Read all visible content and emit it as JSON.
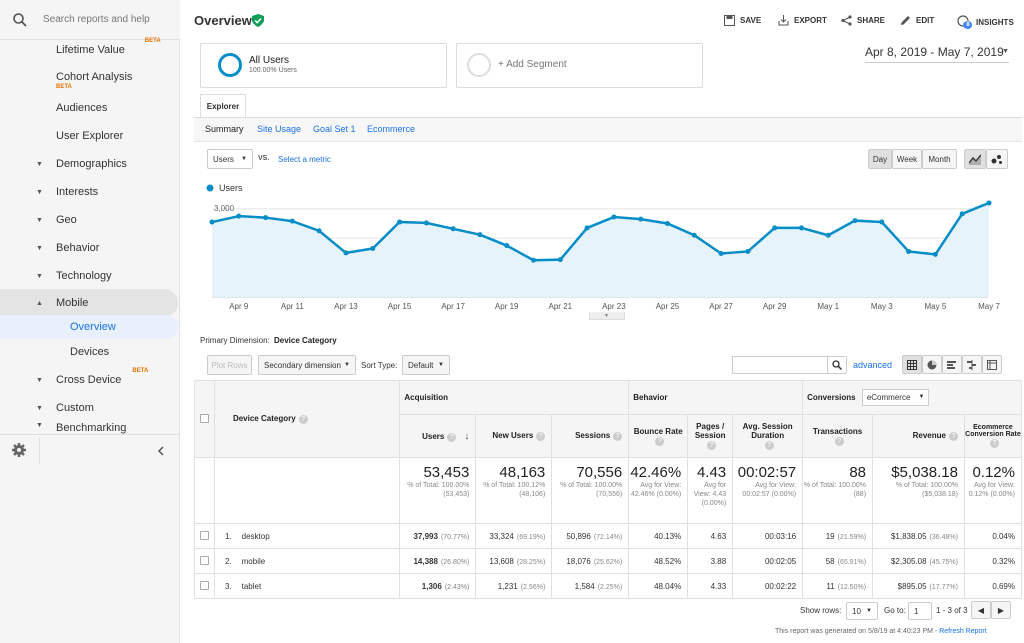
{
  "search": {
    "placeholder": "Search reports and help"
  },
  "sidebar": {
    "items": [
      {
        "label": "Lifetime Value",
        "beta": "BETA"
      },
      {
        "label": "Cohort Analysis",
        "beta": "BETA"
      },
      {
        "label": "Audiences"
      },
      {
        "label": "User Explorer"
      },
      {
        "label": "Demographics"
      },
      {
        "label": "Interests"
      },
      {
        "label": "Geo"
      },
      {
        "label": "Behavior"
      },
      {
        "label": "Technology"
      },
      {
        "label": "Mobile"
      },
      {
        "label": "Overview"
      },
      {
        "label": "Devices"
      },
      {
        "label": "Cross Device",
        "beta": "BETA"
      },
      {
        "label": "Custom"
      },
      {
        "label": "Benchmarking"
      }
    ]
  },
  "header": {
    "title": "Overview",
    "save": "SAVE",
    "export": "EXPORT",
    "share": "SHARE",
    "edit": "EDIT",
    "insights": "INSIGHTS",
    "insights_badge": "8"
  },
  "segments": {
    "all_users": "All Users",
    "all_users_pct": "100.00% Users",
    "add_segment": "+ Add Segment"
  },
  "date_range": "Apr 8, 2019 - May 7, 2019",
  "explorer_tab": "Explorer",
  "subtabs": [
    "Summary",
    "Site Usage",
    "Goal Set 1",
    "Ecommerce"
  ],
  "metric": {
    "selected": "Users",
    "vs": "VS.",
    "select_metric": "Select a metric"
  },
  "granularity": [
    "Day",
    "Week",
    "Month"
  ],
  "chart_data": {
    "type": "area",
    "series": [
      {
        "name": "Users",
        "values": [
          2550,
          2750,
          2700,
          2580,
          2250,
          1500,
          1650,
          2550,
          2520,
          2320,
          2120,
          1750,
          1250,
          1270,
          2350,
          2720,
          2650,
          2500,
          2100,
          1480,
          1550,
          2350,
          2350,
          2100,
          2600,
          2550,
          1550,
          1450,
          2830,
          3200
        ]
      }
    ],
    "x": [
      "Apr 8",
      "Apr 9",
      "Apr 10",
      "Apr 11",
      "Apr 12",
      "Apr 13",
      "Apr 14",
      "Apr 15",
      "Apr 16",
      "Apr 17",
      "Apr 18",
      "Apr 19",
      "Apr 20",
      "Apr 21",
      "Apr 22",
      "Apr 23",
      "Apr 24",
      "Apr 25",
      "Apr 26",
      "Apr 27",
      "Apr 28",
      "Apr 29",
      "Apr 30",
      "May 1",
      "May 2",
      "May 3",
      "May 4",
      "May 5",
      "May 6",
      "May 7"
    ],
    "xticks": [
      "Apr 9",
      "Apr 11",
      "Apr 13",
      "Apr 15",
      "Apr 17",
      "Apr 19",
      "Apr 21",
      "Apr 23",
      "Apr 25",
      "Apr 27",
      "Apr 29",
      "May 1",
      "May 3",
      "May 5",
      "May 7"
    ],
    "yticks": [
      "3,000",
      "2,000",
      "1,000"
    ],
    "ylim": [
      0,
      3300
    ],
    "legend_placement": "top-left",
    "color": "#058dc7"
  },
  "primary_dimension": {
    "label": "Primary Dimension:",
    "value": "Device Category"
  },
  "controls": {
    "plot_rows": "Plot Rows",
    "secondary_dimension": "Secondary dimension",
    "sort_type_label": "Sort Type:",
    "sort_type": "Default",
    "advanced": "advanced"
  },
  "table": {
    "device_category": "Device Category",
    "groups": {
      "acquisition": "Acquisition",
      "behavior": "Behavior",
      "conversions": "Conversions",
      "conversions_select": "eCommerce"
    },
    "columns": [
      "Users",
      "New Users",
      "Sessions",
      "Bounce Rate",
      "Pages / Session",
      "Avg. Session Duration",
      "Transactions",
      "Revenue",
      "Ecommerce Conversion Rate"
    ],
    "totals": [
      {
        "value": "53,453",
        "sub": "% of Total: 100.00% (53,453)"
      },
      {
        "value": "48,163",
        "sub": "% of Total: 100.12% (48,106)"
      },
      {
        "value": "70,556",
        "sub": "% of Total: 100.00% (70,556)"
      },
      {
        "value": "42.46%",
        "sub": "Avg for View: 42.46% (0.00%)"
      },
      {
        "value": "4.43",
        "sub": "Avg for View: 4.43 (0.00%)"
      },
      {
        "value": "00:02:57",
        "sub": "Avg for View: 00:02:57 (0.00%)"
      },
      {
        "value": "88",
        "sub": "% of Total: 100.00% (88)"
      },
      {
        "value": "$5,038.18",
        "sub": "% of Total: 100.00% ($5,038.18)"
      },
      {
        "value": "0.12%",
        "sub": "Avg for View: 0.12% (0.00%)"
      }
    ],
    "rows": [
      {
        "num": "1.",
        "name": "desktop",
        "cells": [
          [
            "37,993",
            "(70.77%)"
          ],
          [
            "33,324",
            "(69.19%)"
          ],
          [
            "50,896",
            "(72.14%)"
          ],
          [
            "40.13%",
            ""
          ],
          [
            "4.63",
            ""
          ],
          [
            "00:03:16",
            ""
          ],
          [
            "19",
            "(21.59%)"
          ],
          [
            "$1,838.05",
            "(36.48%)"
          ],
          [
            "0.04%",
            ""
          ]
        ]
      },
      {
        "num": "2.",
        "name": "mobile",
        "cells": [
          [
            "14,388",
            "(26.80%)"
          ],
          [
            "13,608",
            "(28.25%)"
          ],
          [
            "18,076",
            "(25.62%)"
          ],
          [
            "48.52%",
            ""
          ],
          [
            "3.88",
            ""
          ],
          [
            "00:02:05",
            ""
          ],
          [
            "58",
            "(65.91%)"
          ],
          [
            "$2,305.08",
            "(45.75%)"
          ],
          [
            "0.32%",
            ""
          ]
        ]
      },
      {
        "num": "3.",
        "name": "tablet",
        "cells": [
          [
            "1,306",
            "(2.43%)"
          ],
          [
            "1,231",
            "(2.56%)"
          ],
          [
            "1,584",
            "(2.25%)"
          ],
          [
            "48.04%",
            ""
          ],
          [
            "4.33",
            ""
          ],
          [
            "00:02:22",
            ""
          ],
          [
            "11",
            "(12.50%)"
          ],
          [
            "$895.05",
            "(17.77%)"
          ],
          [
            "0.69%",
            ""
          ]
        ]
      }
    ]
  },
  "pagination": {
    "show_rows": "Show rows:",
    "rows": "10",
    "goto": "Go to:",
    "page": "1",
    "range": "1 - 3 of 3"
  },
  "footer": {
    "generated": "This report was generated on 5/8/19 at 4:40:23 PM -",
    "refresh": "Refresh Report"
  }
}
